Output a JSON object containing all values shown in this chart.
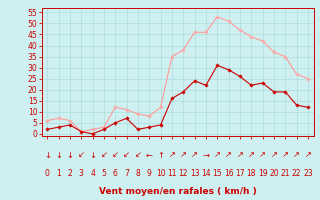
{
  "hours": [
    0,
    1,
    2,
    3,
    4,
    5,
    6,
    7,
    8,
    9,
    10,
    11,
    12,
    13,
    14,
    15,
    16,
    17,
    18,
    19,
    20,
    21,
    22,
    23
  ],
  "wind_avg": [
    2,
    3,
    4,
    1,
    0,
    2,
    5,
    7,
    2,
    3,
    4,
    16,
    19,
    24,
    22,
    31,
    29,
    26,
    22,
    23,
    19,
    19,
    13,
    12
  ],
  "wind_gust": [
    6,
    7,
    6,
    1,
    2,
    3,
    12,
    11,
    9,
    8,
    12,
    35,
    38,
    46,
    46,
    53,
    51,
    47,
    44,
    42,
    37,
    35,
    27,
    25
  ],
  "wind_dir_arrows": [
    "↓",
    "↓",
    "↓",
    "↙",
    "↓",
    "↙",
    "↙",
    "↙",
    "↙",
    "←",
    "↑",
    "↗",
    "↗",
    "↗",
    "→",
    "↗",
    "↗",
    "↗",
    "↗",
    "↗",
    "↗",
    "↗",
    "↗",
    "↗"
  ],
  "bg_color": "#cff0f0",
  "grid_color": "#aadddd",
  "line_avg_color": "#cc0000",
  "line_gust_color": "#ff9999",
  "marker_color_avg": "#cc0000",
  "marker_color_gust": "#ffaaaa",
  "arrow_color": "#cc0000",
  "xlabel": "Vent moyen/en rafales ( km/h )",
  "ylabel_ticks": [
    0,
    5,
    10,
    15,
    20,
    25,
    30,
    35,
    40,
    45,
    50,
    55
  ],
  "ylim": [
    -1,
    57
  ],
  "xlim": [
    -0.5,
    23.5
  ],
  "xlabel_color": "#cc0000",
  "tick_color": "#cc0000",
  "tick_fontsize": 5.5,
  "xlabel_fontsize": 6.5,
  "arrow_fontsize": 6
}
